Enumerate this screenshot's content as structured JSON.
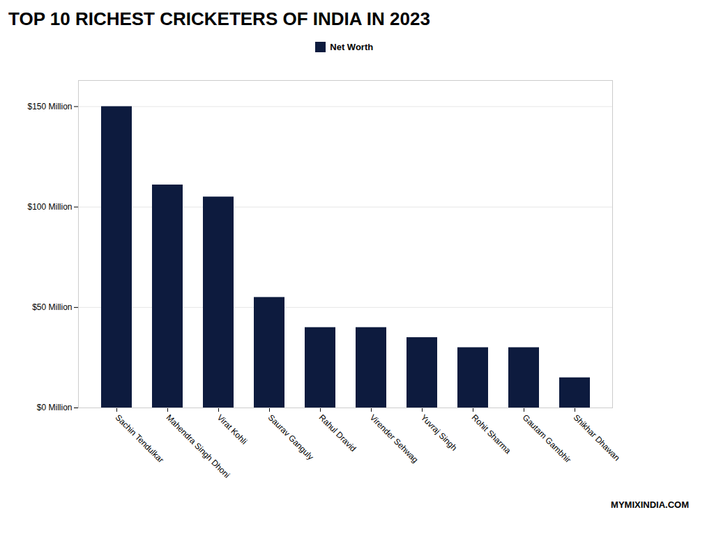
{
  "chart_data": {
    "type": "bar",
    "title": "TOP 10 RICHEST CRICKETERS OF INDIA IN 2023",
    "categories": [
      "Sachin Tendulkar",
      "Mahendra Singh Dhoni",
      "Virat Kohli",
      "Saurav Ganguly",
      "Rahul Dravid",
      "Virender Sehwag",
      "Yuvraj Singh",
      "Rohit Sharma",
      "Gautam Gambhir",
      "Shikhar Dhawan"
    ],
    "series": [
      {
        "name": "Net Worth",
        "color": "#0d1b3e",
        "values": [
          150,
          111,
          105,
          55,
          40,
          40,
          35,
          30,
          30,
          15
        ]
      }
    ],
    "ylim": [
      0,
      163
    ],
    "yticks": [
      {
        "value": 0,
        "label": "$0 Million"
      },
      {
        "value": 50,
        "label": "$50 Million"
      },
      {
        "value": 100,
        "label": "$100 Million"
      },
      {
        "value": 150,
        "label": "$150 Million"
      }
    ],
    "grid": true,
    "legend": "top",
    "annotations": [
      "MYMIXINDIA.COM"
    ]
  }
}
